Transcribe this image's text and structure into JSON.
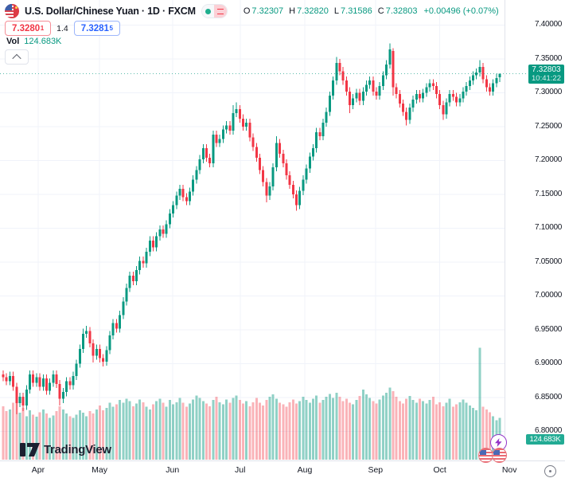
{
  "header": {
    "title": "U.S. Dollar/Chinese Yuan · 1D · FXCM",
    "ohlc": {
      "o_label": "O",
      "o": "7.32307",
      "h_label": "H",
      "h": "7.32820",
      "l_label": "L",
      "l": "7.31586",
      "c_label": "C",
      "c": "7.32803",
      "change": "+0.00496 (+0.07%)"
    },
    "bid": "7.3280",
    "bid_sup": "1",
    "spread": "1.4",
    "ask": "7.3281",
    "ask_sup": "5",
    "vol_label": "Vol",
    "vol_value": "124.683K"
  },
  "price_scale": {
    "ticks": [
      "7.40000",
      "7.35000",
      "7.30000",
      "7.25000",
      "7.20000",
      "7.15000",
      "7.10000",
      "7.05000",
      "7.00000",
      "6.95000",
      "6.90000",
      "6.85000",
      "6.80000"
    ],
    "last_price_badge": {
      "price": "7.32803",
      "time": "10:41:22"
    },
    "volume_badge": "124.683K"
  },
  "time_scale": {
    "months": [
      {
        "label": "Apr",
        "i": 10.5
      },
      {
        "label": "May",
        "i": 28.9
      },
      {
        "label": "Jun",
        "i": 50.8
      },
      {
        "label": "Jul",
        "i": 71.1
      },
      {
        "label": "Aug",
        "i": 90.5
      },
      {
        "label": "Sep",
        "i": 111.7
      },
      {
        "label": "Oct",
        "i": 131
      },
      {
        "label": "Nov",
        "i": 151.9
      }
    ]
  },
  "logo_text": "TradingView",
  "colors": {
    "up": "#089981",
    "down": "#f23645",
    "vol_up": "rgba(8,153,129,0.45)",
    "vol_down": "rgba(242,54,69,0.38)",
    "grid": "#f0f3fa",
    "axis_border": "#e0e3eb",
    "badge": "#089981",
    "vol_badge": "#22ab94",
    "bid": "#f23645",
    "ask": "#2962ff"
  },
  "chart_data": {
    "type": "candlestick",
    "title": "U.S. Dollar/Chinese Yuan",
    "interval": "1D",
    "exchange": "FXCM",
    "ylabel": "price",
    "ylim": [
      6.757,
      7.437
    ],
    "grid": true,
    "price_line": 7.32803,
    "candles": [
      [
        6.884,
        6.89,
        6.874,
        6.88
      ],
      [
        6.88,
        6.886,
        6.868,
        6.874
      ],
      [
        6.874,
        6.888,
        6.868,
        6.882
      ],
      [
        6.882,
        6.888,
        6.86,
        6.866
      ],
      [
        6.866,
        6.872,
        6.825,
        6.842
      ],
      [
        6.842,
        6.857,
        6.836,
        6.851
      ],
      [
        6.851,
        6.857,
        6.83,
        6.838
      ],
      [
        6.838,
        6.868,
        6.832,
        6.862
      ],
      [
        6.862,
        6.89,
        6.856,
        6.884
      ],
      [
        6.884,
        6.89,
        6.866,
        6.872
      ],
      [
        6.872,
        6.886,
        6.866,
        6.88
      ],
      [
        6.88,
        6.886,
        6.86,
        6.866
      ],
      [
        6.866,
        6.884,
        6.86,
        6.878
      ],
      [
        6.878,
        6.884,
        6.854,
        6.86
      ],
      [
        6.86,
        6.878,
        6.854,
        6.872
      ],
      [
        6.872,
        6.89,
        6.866,
        6.884
      ],
      [
        6.884,
        6.89,
        6.864,
        6.87
      ],
      [
        6.87,
        6.876,
        6.838,
        6.848
      ],
      [
        6.848,
        6.864,
        6.842,
        6.858
      ],
      [
        6.858,
        6.88,
        6.852,
        6.874
      ],
      [
        6.874,
        6.88,
        6.862,
        6.868
      ],
      [
        6.868,
        6.888,
        6.862,
        6.882
      ],
      [
        6.882,
        6.906,
        6.876,
        6.9
      ],
      [
        6.9,
        6.928,
        6.894,
        6.922
      ],
      [
        6.922,
        6.952,
        6.916,
        6.944
      ],
      [
        6.944,
        6.956,
        6.938,
        6.948
      ],
      [
        6.948,
        6.954,
        6.924,
        6.93
      ],
      [
        6.93,
        6.936,
        6.902,
        6.912
      ],
      [
        6.912,
        6.928,
        6.906,
        6.922
      ],
      [
        6.922,
        6.928,
        6.902,
        6.908
      ],
      [
        6.908,
        6.914,
        6.896,
        6.903
      ],
      [
        6.903,
        6.926,
        6.897,
        6.92
      ],
      [
        6.92,
        6.948,
        6.914,
        6.942
      ],
      [
        6.942,
        6.966,
        6.936,
        6.96
      ],
      [
        6.96,
        6.966,
        6.946,
        6.952
      ],
      [
        6.952,
        6.978,
        6.946,
        6.972
      ],
      [
        6.972,
        6.998,
        6.966,
        6.992
      ],
      [
        6.992,
        7.018,
        6.986,
        7.012
      ],
      [
        7.012,
        7.036,
        7.006,
        7.03
      ],
      [
        7.03,
        7.036,
        7.016,
        7.022
      ],
      [
        7.022,
        7.044,
        7.016,
        7.038
      ],
      [
        7.038,
        7.058,
        7.032,
        7.052
      ],
      [
        7.052,
        7.058,
        7.042,
        7.048
      ],
      [
        7.048,
        7.071,
        7.042,
        7.065
      ],
      [
        7.065,
        7.088,
        7.059,
        7.082
      ],
      [
        7.082,
        7.088,
        7.066,
        7.072
      ],
      [
        7.072,
        7.094,
        7.066,
        7.088
      ],
      [
        7.088,
        7.104,
        7.082,
        7.098
      ],
      [
        7.098,
        7.104,
        7.086,
        7.092
      ],
      [
        7.092,
        7.112,
        7.086,
        7.106
      ],
      [
        7.106,
        7.128,
        7.1,
        7.122
      ],
      [
        7.122,
        7.14,
        7.116,
        7.134
      ],
      [
        7.134,
        7.154,
        7.128,
        7.148
      ],
      [
        7.148,
        7.164,
        7.142,
        7.158
      ],
      [
        7.158,
        7.164,
        7.14,
        7.146
      ],
      [
        7.146,
        7.152,
        7.134,
        7.14
      ],
      [
        7.14,
        7.16,
        7.134,
        7.154
      ],
      [
        7.154,
        7.178,
        7.148,
        7.172
      ],
      [
        7.172,
        7.192,
        7.166,
        7.186
      ],
      [
        7.186,
        7.208,
        7.18,
        7.202
      ],
      [
        7.202,
        7.224,
        7.196,
        7.218
      ],
      [
        7.218,
        7.224,
        7.198,
        7.204
      ],
      [
        7.204,
        7.21,
        7.19,
        7.196
      ],
      [
        7.196,
        7.244,
        7.19,
        7.238
      ],
      [
        7.238,
        7.244,
        7.22,
        7.226
      ],
      [
        7.226,
        7.238,
        7.22,
        7.232
      ],
      [
        7.232,
        7.252,
        7.226,
        7.246
      ],
      [
        7.246,
        7.258,
        7.24,
        7.252
      ],
      [
        7.252,
        7.258,
        7.238,
        7.244
      ],
      [
        7.244,
        7.282,
        7.238,
        7.27
      ],
      [
        7.27,
        7.286,
        7.264,
        7.276
      ],
      [
        7.276,
        7.282,
        7.256,
        7.262
      ],
      [
        7.262,
        7.268,
        7.244,
        7.25
      ],
      [
        7.25,
        7.262,
        7.244,
        7.256
      ],
      [
        7.256,
        7.262,
        7.228,
        7.234
      ],
      [
        7.234,
        7.24,
        7.214,
        7.22
      ],
      [
        7.22,
        7.226,
        7.198,
        7.204
      ],
      [
        7.204,
        7.21,
        7.18,
        7.186
      ],
      [
        7.186,
        7.192,
        7.162,
        7.168
      ],
      [
        7.168,
        7.174,
        7.138,
        7.148
      ],
      [
        7.148,
        7.168,
        7.142,
        7.162
      ],
      [
        7.162,
        7.196,
        7.156,
        7.19
      ],
      [
        7.19,
        7.236,
        7.184,
        7.226
      ],
      [
        7.226,
        7.232,
        7.204,
        7.21
      ],
      [
        7.21,
        7.216,
        7.19,
        7.196
      ],
      [
        7.196,
        7.202,
        7.172,
        7.178
      ],
      [
        7.178,
        7.184,
        7.158,
        7.164
      ],
      [
        7.164,
        7.17,
        7.144,
        7.15
      ],
      [
        7.15,
        7.156,
        7.126,
        7.134
      ],
      [
        7.134,
        7.161,
        7.128,
        7.155
      ],
      [
        7.155,
        7.178,
        7.149,
        7.172
      ],
      [
        7.172,
        7.194,
        7.166,
        7.188
      ],
      [
        7.188,
        7.212,
        7.182,
        7.206
      ],
      [
        7.206,
        7.224,
        7.2,
        7.218
      ],
      [
        7.218,
        7.248,
        7.212,
        7.242
      ],
      [
        7.242,
        7.248,
        7.23,
        7.236
      ],
      [
        7.236,
        7.262,
        7.23,
        7.256
      ],
      [
        7.256,
        7.278,
        7.25,
        7.272
      ],
      [
        7.272,
        7.302,
        7.266,
        7.296
      ],
      [
        7.296,
        7.324,
        7.29,
        7.318
      ],
      [
        7.318,
        7.353,
        7.312,
        7.344
      ],
      [
        7.344,
        7.35,
        7.326,
        7.332
      ],
      [
        7.332,
        7.338,
        7.312,
        7.318
      ],
      [
        7.318,
        7.324,
        7.296,
        7.302
      ],
      [
        7.302,
        7.308,
        7.27,
        7.282
      ],
      [
        7.282,
        7.298,
        7.276,
        7.292
      ],
      [
        7.292,
        7.306,
        7.286,
        7.3
      ],
      [
        7.3,
        7.306,
        7.282,
        7.288
      ],
      [
        7.288,
        7.308,
        7.282,
        7.302
      ],
      [
        7.302,
        7.318,
        7.296,
        7.312
      ],
      [
        7.312,
        7.324,
        7.306,
        7.318
      ],
      [
        7.318,
        7.324,
        7.296,
        7.302
      ],
      [
        7.302,
        7.308,
        7.29,
        7.296
      ],
      [
        7.296,
        7.316,
        7.29,
        7.31
      ],
      [
        7.31,
        7.332,
        7.304,
        7.326
      ],
      [
        7.326,
        7.348,
        7.32,
        7.342
      ],
      [
        7.342,
        7.373,
        7.336,
        7.364
      ],
      [
        7.362,
        7.366,
        7.296,
        7.308
      ],
      [
        7.308,
        7.314,
        7.292,
        7.298
      ],
      [
        7.298,
        7.304,
        7.278,
        7.284
      ],
      [
        7.284,
        7.29,
        7.266,
        7.272
      ],
      [
        7.272,
        7.278,
        7.252,
        7.26
      ],
      [
        7.26,
        7.284,
        7.254,
        7.278
      ],
      [
        7.278,
        7.296,
        7.272,
        7.29
      ],
      [
        7.29,
        7.304,
        7.284,
        7.298
      ],
      [
        7.298,
        7.304,
        7.286,
        7.292
      ],
      [
        7.292,
        7.306,
        7.286,
        7.3
      ],
      [
        7.3,
        7.314,
        7.294,
        7.308
      ],
      [
        7.308,
        7.32,
        7.302,
        7.314
      ],
      [
        7.314,
        7.32,
        7.304,
        7.31
      ],
      [
        7.31,
        7.316,
        7.292,
        7.298
      ],
      [
        7.298,
        7.304,
        7.276,
        7.282
      ],
      [
        7.282,
        7.288,
        7.26,
        7.268
      ],
      [
        7.268,
        7.292,
        7.262,
        7.286
      ],
      [
        7.286,
        7.304,
        7.28,
        7.298
      ],
      [
        7.298,
        7.304,
        7.288,
        7.294
      ],
      [
        7.294,
        7.3,
        7.28,
        7.286
      ],
      [
        7.286,
        7.298,
        7.28,
        7.292
      ],
      [
        7.292,
        7.308,
        7.286,
        7.302
      ],
      [
        7.302,
        7.316,
        7.296,
        7.31
      ],
      [
        7.31,
        7.324,
        7.304,
        7.318
      ],
      [
        7.318,
        7.332,
        7.312,
        7.326
      ],
      [
        7.326,
        7.336,
        7.32,
        7.33
      ],
      [
        7.33,
        7.348,
        7.324,
        7.338
      ],
      [
        7.338,
        7.344,
        7.314,
        7.32
      ],
      [
        7.32,
        7.326,
        7.302,
        7.308
      ],
      [
        7.308,
        7.314,
        7.296,
        7.302
      ],
      [
        7.302,
        7.32,
        7.296,
        7.314
      ],
      [
        7.314,
        7.328,
        7.308,
        7.322
      ],
      [
        7.32307,
        7.3282,
        7.31586,
        7.32803
      ]
    ],
    "volumes": [
      160,
      145,
      150,
      170,
      185,
      140,
      155,
      130,
      148,
      135,
      128,
      142,
      150,
      138,
      125,
      132,
      145,
      160,
      150,
      138,
      130,
      125,
      135,
      148,
      140,
      130,
      145,
      138,
      150,
      162,
      148,
      155,
      170,
      158,
      165,
      178,
      170,
      182,
      175,
      160,
      168,
      180,
      172,
      158,
      150,
      165,
      175,
      182,
      170,
      158,
      178,
      165,
      172,
      185,
      170,
      158,
      168,
      180,
      192,
      185,
      175,
      168,
      160,
      178,
      188,
      172,
      165,
      180,
      170,
      185,
      192,
      178,
      168,
      175,
      160,
      172,
      185,
      170,
      162,
      178,
      188,
      195,
      182,
      170,
      165,
      158,
      172,
      180,
      168,
      175,
      188,
      178,
      170,
      182,
      192,
      170,
      178,
      188,
      196,
      185,
      200,
      188,
      175,
      182,
      170,
      165,
      178,
      190,
      210,
      195,
      185,
      175,
      168,
      180,
      192,
      200,
      215,
      205,
      188,
      175,
      168,
      182,
      190,
      178,
      170,
      182,
      175,
      168,
      178,
      188,
      165,
      172,
      160,
      170,
      182,
      158,
      165,
      172,
      180,
      170,
      162,
      155,
      148,
      335,
      158,
      150,
      142,
      130,
      118,
      124.683
    ]
  }
}
